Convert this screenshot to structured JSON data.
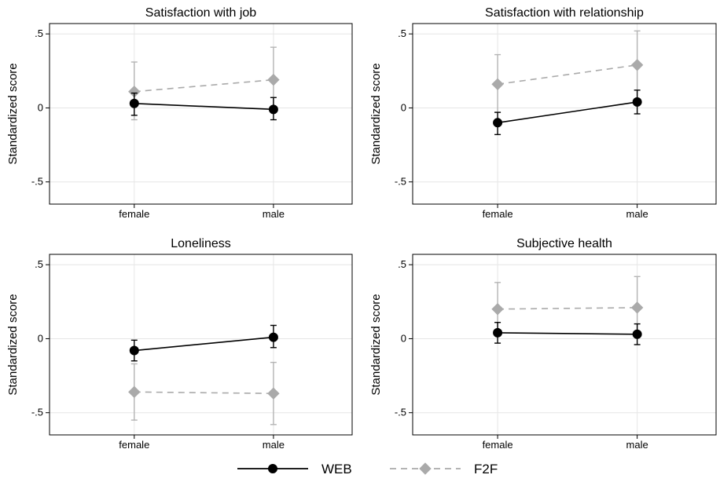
{
  "figure": {
    "y_axis_label": "Standardized score",
    "legend": [
      {
        "name": "WEB",
        "color": "#000000",
        "marker": "circle",
        "line": "solid"
      },
      {
        "name": "F2F",
        "color": "#aaaaaa",
        "marker": "diamond",
        "line": "dashed"
      }
    ]
  },
  "chart_data": [
    {
      "type": "line",
      "title": "Satisfaction with job",
      "xlabel": "",
      "ylabel": "Standardized score",
      "categories": [
        "female",
        "male"
      ],
      "ylim": [
        -0.65,
        0.57
      ],
      "yticks": [
        0.5,
        0,
        -0.5
      ],
      "ytick_labels": [
        ".5",
        "0",
        "-.5"
      ],
      "grid": true,
      "series": [
        {
          "name": "WEB",
          "values": [
            0.03,
            -0.01
          ],
          "ci_low": [
            -0.05,
            -0.08
          ],
          "ci_high": [
            0.1,
            0.07
          ]
        },
        {
          "name": "F2F",
          "values": [
            0.11,
            0.19
          ],
          "ci_low": [
            -0.08,
            -0.03
          ],
          "ci_high": [
            0.31,
            0.41
          ]
        }
      ]
    },
    {
      "type": "line",
      "title": "Satisfaction with relationship",
      "xlabel": "",
      "ylabel": "Standardized score",
      "categories": [
        "female",
        "male"
      ],
      "ylim": [
        -0.65,
        0.57
      ],
      "yticks": [
        0.5,
        0,
        -0.5
      ],
      "ytick_labels": [
        ".5",
        "0",
        "-.5"
      ],
      "grid": true,
      "series": [
        {
          "name": "WEB",
          "values": [
            -0.1,
            0.04
          ],
          "ci_low": [
            -0.18,
            -0.04
          ],
          "ci_high": [
            -0.03,
            0.12
          ]
        },
        {
          "name": "F2F",
          "values": [
            0.16,
            0.29
          ],
          "ci_low": [
            -0.03,
            0.06
          ],
          "ci_high": [
            0.36,
            0.52
          ]
        }
      ]
    },
    {
      "type": "line",
      "title": "Loneliness",
      "xlabel": "",
      "ylabel": "Standardized score",
      "categories": [
        "female",
        "male"
      ],
      "ylim": [
        -0.65,
        0.57
      ],
      "yticks": [
        0.5,
        0,
        -0.5
      ],
      "ytick_labels": [
        ".5",
        "0",
        "-.5"
      ],
      "grid": true,
      "series": [
        {
          "name": "WEB",
          "values": [
            -0.08,
            0.01
          ],
          "ci_low": [
            -0.15,
            -0.06
          ],
          "ci_high": [
            -0.01,
            0.09
          ]
        },
        {
          "name": "F2F",
          "values": [
            -0.36,
            -0.37
          ],
          "ci_low": [
            -0.55,
            -0.58
          ],
          "ci_high": [
            -0.17,
            -0.16
          ]
        }
      ]
    },
    {
      "type": "line",
      "title": "Subjective health",
      "xlabel": "",
      "ylabel": "Standardized score",
      "categories": [
        "female",
        "male"
      ],
      "ylim": [
        -0.65,
        0.57
      ],
      "yticks": [
        0.5,
        0,
        -0.5
      ],
      "ytick_labels": [
        ".5",
        "0",
        "-.5"
      ],
      "grid": true,
      "series": [
        {
          "name": "WEB",
          "values": [
            0.04,
            0.03
          ],
          "ci_low": [
            -0.03,
            -0.04
          ],
          "ci_high": [
            0.11,
            0.1
          ]
        },
        {
          "name": "F2F",
          "values": [
            0.2,
            0.21
          ],
          "ci_low": [
            0.02,
            0.01
          ],
          "ci_high": [
            0.38,
            0.42
          ]
        }
      ]
    }
  ]
}
